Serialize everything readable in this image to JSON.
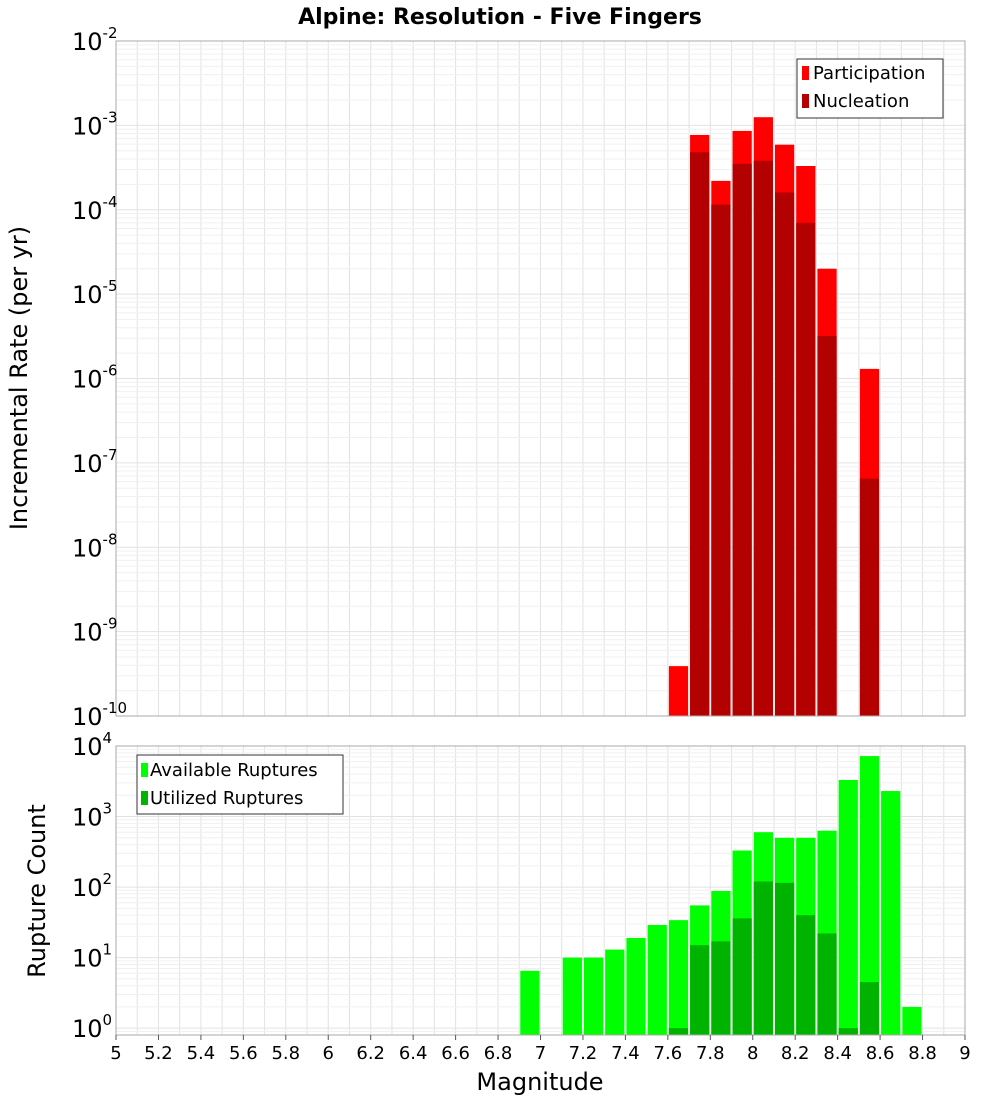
{
  "chart_data": [
    {
      "type": "bar",
      "title": "Alpine: Resolution - Five Fingers",
      "ylabel": "Incremental Rate (per yr)",
      "yscale": "log",
      "ylim": [
        1e-10,
        0.01
      ],
      "xlim": [
        5,
        9
      ],
      "grid": true,
      "legend_position": "top-right",
      "series": [
        {
          "name": "Participation",
          "color": "#ff0000",
          "x": [
            7.65,
            7.75,
            7.85,
            7.95,
            8.05,
            8.15,
            8.25,
            8.35,
            8.55
          ],
          "values": [
            3.9e-10,
            0.00077,
            0.00022,
            0.00086,
            0.00125,
            0.00059,
            0.00033,
            2e-05,
            1.3e-06
          ]
        },
        {
          "name": "Nucleation",
          "color": "#b30000",
          "x": [
            7.75,
            7.85,
            7.95,
            8.05,
            8.15,
            8.25,
            8.35,
            8.55
          ],
          "values": [
            0.00048,
            0.000115,
            0.00035,
            0.00038,
            0.00016,
            7e-05,
            3.2e-06,
            6.5e-08
          ]
        }
      ]
    },
    {
      "type": "bar",
      "xlabel": "Magnitude",
      "ylabel": "Rupture Count",
      "yscale": "log",
      "ylim": [
        0.8,
        10000
      ],
      "xlim": [
        5,
        9
      ],
      "xticks": [
        "5",
        "5.2",
        "5.4",
        "5.6",
        "5.8",
        "6",
        "6.2",
        "6.4",
        "6.6",
        "6.8",
        "7",
        "7.2",
        "7.4",
        "7.6",
        "7.8",
        "8",
        "8.2",
        "8.4",
        "8.6",
        "8.8",
        "9"
      ],
      "grid": true,
      "legend_position": "top-left",
      "series": [
        {
          "name": "Available Ruptures",
          "color": "#00ff00",
          "x": [
            6.95,
            7.15,
            7.25,
            7.35,
            7.45,
            7.55,
            7.65,
            7.75,
            7.85,
            7.95,
            8.05,
            8.15,
            8.25,
            8.35,
            8.45,
            8.55,
            8.65,
            8.75
          ],
          "values": [
            6.5,
            10,
            10,
            13,
            19,
            29,
            34,
            55,
            88,
            330,
            600,
            500,
            500,
            630,
            3300,
            7200,
            2300,
            2
          ]
        },
        {
          "name": "Utilized Ruptures",
          "color": "#00b300",
          "x": [
            7.65,
            7.75,
            7.85,
            7.95,
            8.05,
            8.15,
            8.25,
            8.35,
            8.45,
            8.55
          ],
          "values": [
            1,
            15,
            17,
            36,
            120,
            115,
            40,
            22,
            1,
            4.5
          ]
        }
      ]
    }
  ]
}
